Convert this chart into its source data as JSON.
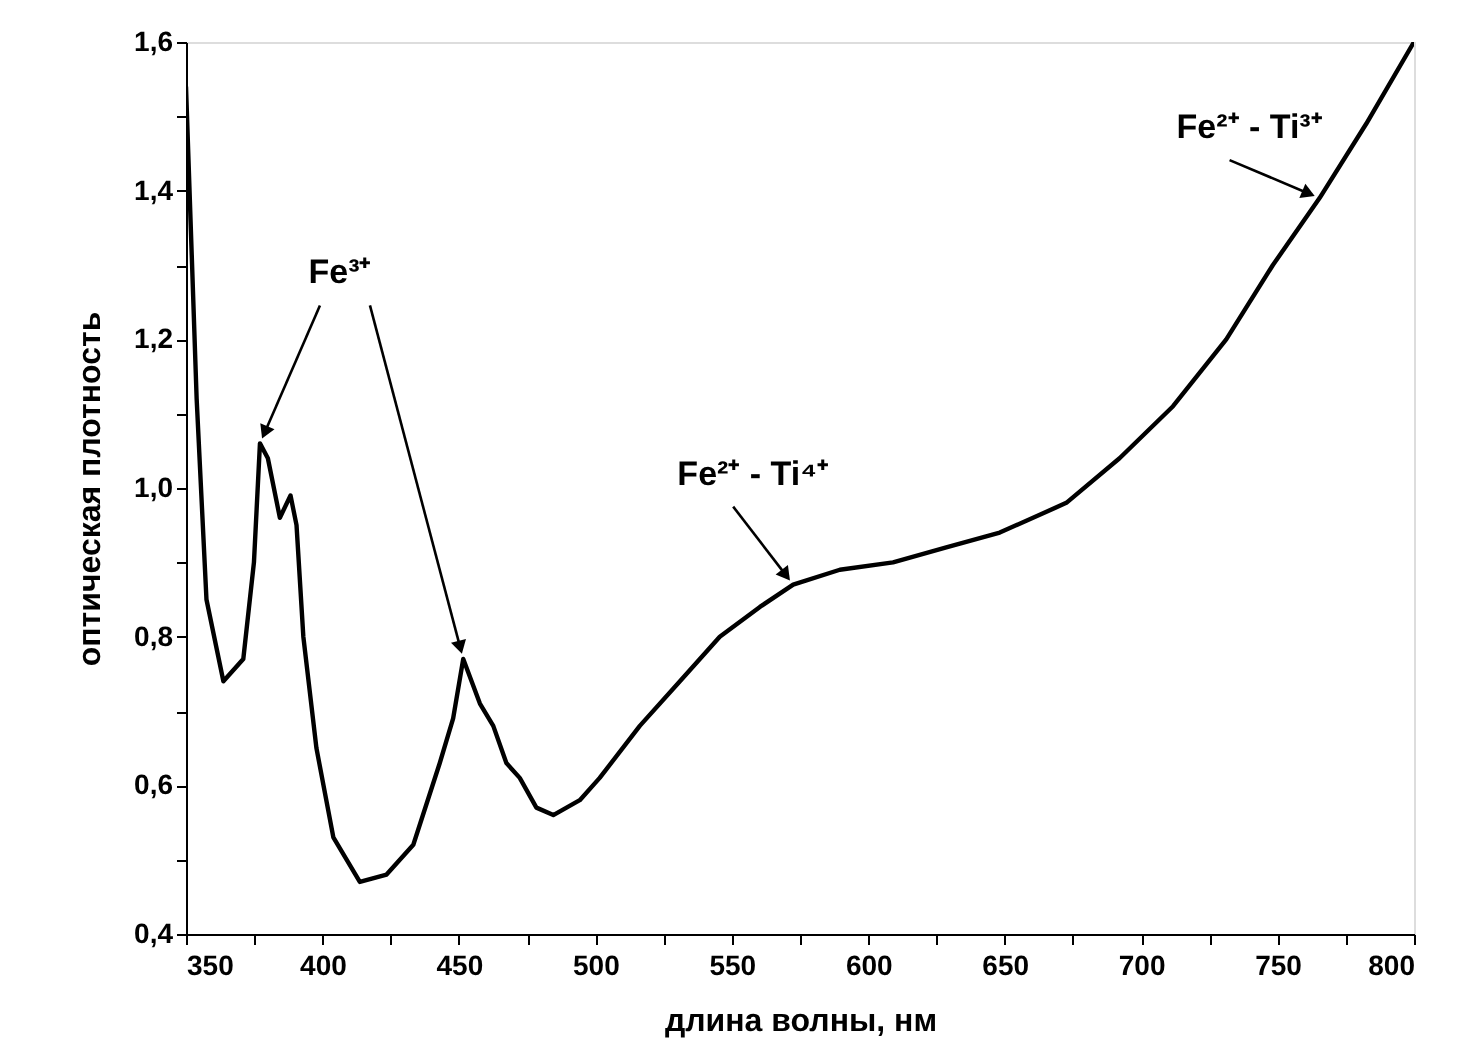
{
  "chart_data": {
    "type": "line",
    "xlabel": "длина волны, нм",
    "ylabel": "оптическая плотность",
    "x": [
      350,
      353.9,
      357.5,
      363.7,
      371,
      374.9,
      377.1,
      380,
      384.4,
      388.3,
      390.5,
      393,
      397.8,
      404,
      413.7,
      423.5,
      433.3,
      443,
      447.9,
      451.6,
      457.7,
      462.6,
      467.4,
      472.3,
      478.4,
      484.6,
      494.3,
      501.6,
      516.3,
      531,
      545.6,
      560.3,
      572.5,
      589.6,
      609.1,
      628.6,
      648.2,
      672.6,
      692.1,
      711.7,
      731.2,
      748.3,
      765.4,
      782.5,
      800
    ],
    "series": [
      {
        "color": "#000000",
        "values": [
          1.54,
          1.12,
          0.85,
          0.74,
          0.77,
          0.9,
          1.06,
          1.04,
          0.96,
          0.99,
          0.95,
          0.8,
          0.65,
          0.53,
          0.47,
          0.48,
          0.52,
          0.63,
          0.69,
          0.77,
          0.71,
          0.68,
          0.63,
          0.61,
          0.57,
          0.56,
          0.58,
          0.61,
          0.68,
          0.74,
          0.8,
          0.84,
          0.87,
          0.89,
          0.9,
          0.92,
          0.94,
          0.98,
          1.04,
          1.11,
          1.2,
          1.3,
          1.39,
          1.49,
          1.6
        ]
      }
    ],
    "xlim": [
      350,
      800
    ],
    "ylim": [
      0.4,
      1.6
    ],
    "xticks": [
      350,
      {
        "value": 375,
        "label": null
      },
      400,
      {
        "value": 425,
        "label": null
      },
      450,
      {
        "value": 475,
        "label": null
      },
      500,
      {
        "value": 525,
        "label": null
      },
      550,
      {
        "value": 575,
        "label": null
      },
      600,
      {
        "value": 625,
        "label": null
      },
      650,
      {
        "value": 675,
        "label": null
      },
      700,
      {
        "value": 725,
        "label": null
      },
      750,
      {
        "value": 775,
        "label": null
      },
      800
    ],
    "yticks": [
      {
        "value": 0.4,
        "label": "0,4"
      },
      {
        "value": 0.5,
        "label": null
      },
      {
        "value": 0.6,
        "label": "0,6"
      },
      {
        "value": 0.7,
        "label": null
      },
      {
        "value": 0.8,
        "label": "0,8"
      },
      {
        "value": 0.9,
        "label": null
      },
      {
        "value": 1.0,
        "label": "1,0"
      },
      {
        "value": 1.1,
        "label": null
      },
      {
        "value": 1.2,
        "label": "1,2"
      },
      {
        "value": 1.3,
        "label": null
      },
      {
        "value": 1.4,
        "label": "1,4"
      },
      {
        "value": 1.5,
        "label": null
      },
      {
        "value": 1.6,
        "label": "1,6"
      }
    ],
    "grid": false,
    "marker": "none",
    "line_style": "solid",
    "annotations": [
      {
        "text": "Fe³⁺",
        "x": 377.1,
        "y": 1.06
      },
      {
        "text": "Fe²⁺ - Ti⁴⁺",
        "x": 572.5,
        "y": 0.87
      },
      {
        "text": "Fe²⁺ - Ti³⁺",
        "x": 765.4,
        "y": 1.39
      }
    ]
  }
}
